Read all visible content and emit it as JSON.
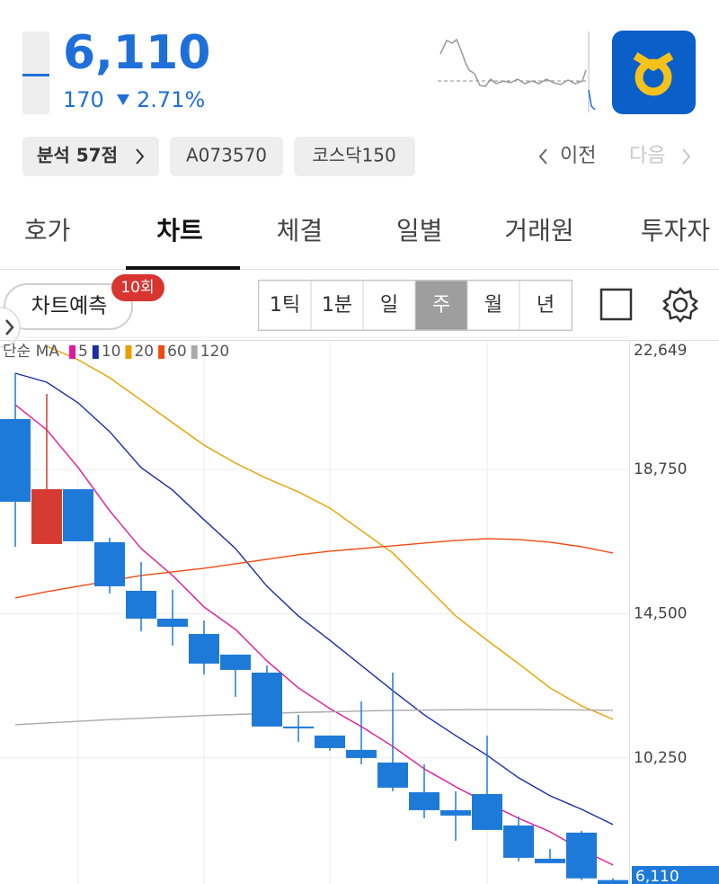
{
  "header": {
    "price": "6,110",
    "change": "170",
    "change_pct": "2.71%"
  },
  "tags": [
    "분석 57점",
    "A073570",
    "코스닥150"
  ],
  "nav": {
    "prev": "이전",
    "next": "다음"
  },
  "tabs": [
    "호가",
    "차트",
    "체결",
    "일별",
    "거래원",
    "투자자"
  ],
  "active_tab": 1,
  "toolbar": {
    "predict": "차트예측",
    "badge": "10회",
    "periods": [
      "1틱",
      "1분",
      "일",
      "주",
      "월",
      "년"
    ],
    "active_period": 3
  },
  "chart_data": {
    "type": "candlestick",
    "legend_title": "단순 MA",
    "up_color": "#d63b32",
    "down_color": "#1e7ad9",
    "ylim": [
      6110,
      22649
    ],
    "yticks": [
      {
        "value": 22649,
        "label": "22,649"
      },
      {
        "value": 18750,
        "label": "18,750"
      },
      {
        "value": 14500,
        "label": "14,500"
      },
      {
        "value": 10250,
        "label": "10,250"
      }
    ],
    "grid": true,
    "ohlc": {
      "open": [
        20237,
        16554,
        18170,
        16607,
        15176,
        14355,
        13904,
        13295,
        12765,
        11175,
        10910,
        10486,
        10115,
        9240,
        8710,
        9187,
        8260,
        7279,
        8048,
        6650
      ],
      "high": [
        21589,
        20980,
        18170,
        16740,
        16024,
        15202,
        14302,
        13295,
        12977,
        11519,
        10910,
        11917,
        12765,
        10062,
        9267,
        10910,
        8525,
        7571,
        8100,
        6700
      ],
      "low": [
        16475,
        16554,
        16634,
        15097,
        13983,
        13560,
        12712,
        12050,
        11175,
        10724,
        10460,
        10062,
        9267,
        8472,
        7809,
        8127,
        7200,
        7147,
        6650,
        6110
      ],
      "close": [
        17800,
        18170,
        16634,
        15309,
        14355,
        14116,
        13030,
        12844,
        11175,
        11122,
        10539,
        10247,
        9373,
        8710,
        8551,
        8127,
        7306,
        7147,
        6700,
        6110
      ]
    },
    "series": [
      {
        "name": "5",
        "color": "#e0189e",
        "values": [
          20660,
          19920,
          18807,
          17535,
          16422,
          15627,
          14700,
          14037,
          13109,
          12314,
          11705,
          11175,
          10592,
          9929,
          9399,
          8922,
          8472,
          8074,
          7544,
          7094
        ]
      },
      {
        "name": "10",
        "color": "#1a2ea8",
        "values": [
          21589,
          21324,
          20714,
          19867,
          18807,
          18144,
          17270,
          16422,
          15309,
          14434,
          13718,
          12977,
          12235,
          11519,
          10910,
          10327,
          9664,
          9134,
          8737,
          8286
        ]
      },
      {
        "name": "20",
        "color": "#e8a000",
        "values": [
          null,
          22384,
          21987,
          21456,
          20794,
          20131,
          19469,
          18939,
          18488,
          18091,
          17614,
          16952,
          16289,
          15362,
          14434,
          13718,
          13030,
          12314,
          11784,
          11387
        ]
      },
      {
        "name": "60",
        "color": "#f04a10",
        "values": [
          14964,
          15150,
          15309,
          15468,
          15627,
          15733,
          15839,
          15971,
          16104,
          16236,
          16342,
          16422,
          16501,
          16580,
          16660,
          16713,
          16687,
          16607,
          16475,
          16289
        ]
      },
      {
        "name": "120",
        "color": "#aaaaaa",
        "values": [
          11227,
          11280,
          11330,
          11380,
          11420,
          11460,
          11500,
          11530,
          11560,
          11590,
          11610,
          11630,
          11650,
          11660,
          11670,
          11675,
          11675,
          11670,
          11665,
          11650
        ]
      }
    ]
  }
}
